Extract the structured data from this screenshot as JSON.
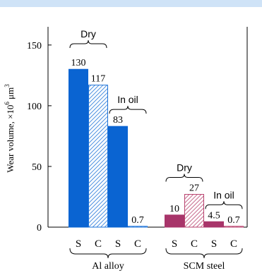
{
  "chart_data": {
    "type": "bar",
    "ylabel": "Wear volume, ×10",
    "ylabel_exp": "6",
    "ylabel_unit": " μm",
    "ylabel_unit_exp": "3",
    "ylim": [
      0,
      165
    ],
    "yticks": [
      0,
      50,
      100,
      150
    ],
    "groups": [
      {
        "name": "Al alloy",
        "bars": [
          {
            "label": "S",
            "value": 130,
            "value_label": "130",
            "condition": "Dry",
            "pattern": "solid"
          },
          {
            "label": "C",
            "value": 117,
            "value_label": "117",
            "condition": "Dry",
            "pattern": "hatch"
          },
          {
            "label": "S",
            "value": 83,
            "value_label": "83",
            "condition": "In oil",
            "pattern": "solid"
          },
          {
            "label": "C",
            "value": 0.7,
            "value_label": "0.7",
            "condition": "In oil",
            "pattern": "hatch"
          }
        ],
        "braces": [
          {
            "label": "Dry",
            "from": 0,
            "to": 1
          },
          {
            "label": "In oil",
            "from": 2,
            "to": 3
          }
        ]
      },
      {
        "name": "SCM steel",
        "bars": [
          {
            "label": "S",
            "value": 10,
            "value_label": "10",
            "condition": "Dry",
            "pattern": "solid"
          },
          {
            "label": "C",
            "value": 27,
            "value_label": "27",
            "condition": "Dry",
            "pattern": "hatch"
          },
          {
            "label": "S",
            "value": 4.5,
            "value_label": "4.5",
            "condition": "In oil",
            "pattern": "solid"
          },
          {
            "label": "C",
            "value": 0.7,
            "value_label": "0.7",
            "condition": "In oil",
            "pattern": "hatch"
          }
        ],
        "braces": [
          {
            "label": "Dry",
            "from": 0,
            "to": 1
          },
          {
            "label": "In oil",
            "from": 2,
            "to": 3
          }
        ]
      }
    ],
    "colors": {
      "top_band": "#cfe3f7",
      "al_fill": "#0a64d2",
      "al_hatch": "#1e73d8",
      "scm_fill": "#a8356a",
      "scm_hatch": "#b8436f"
    }
  }
}
